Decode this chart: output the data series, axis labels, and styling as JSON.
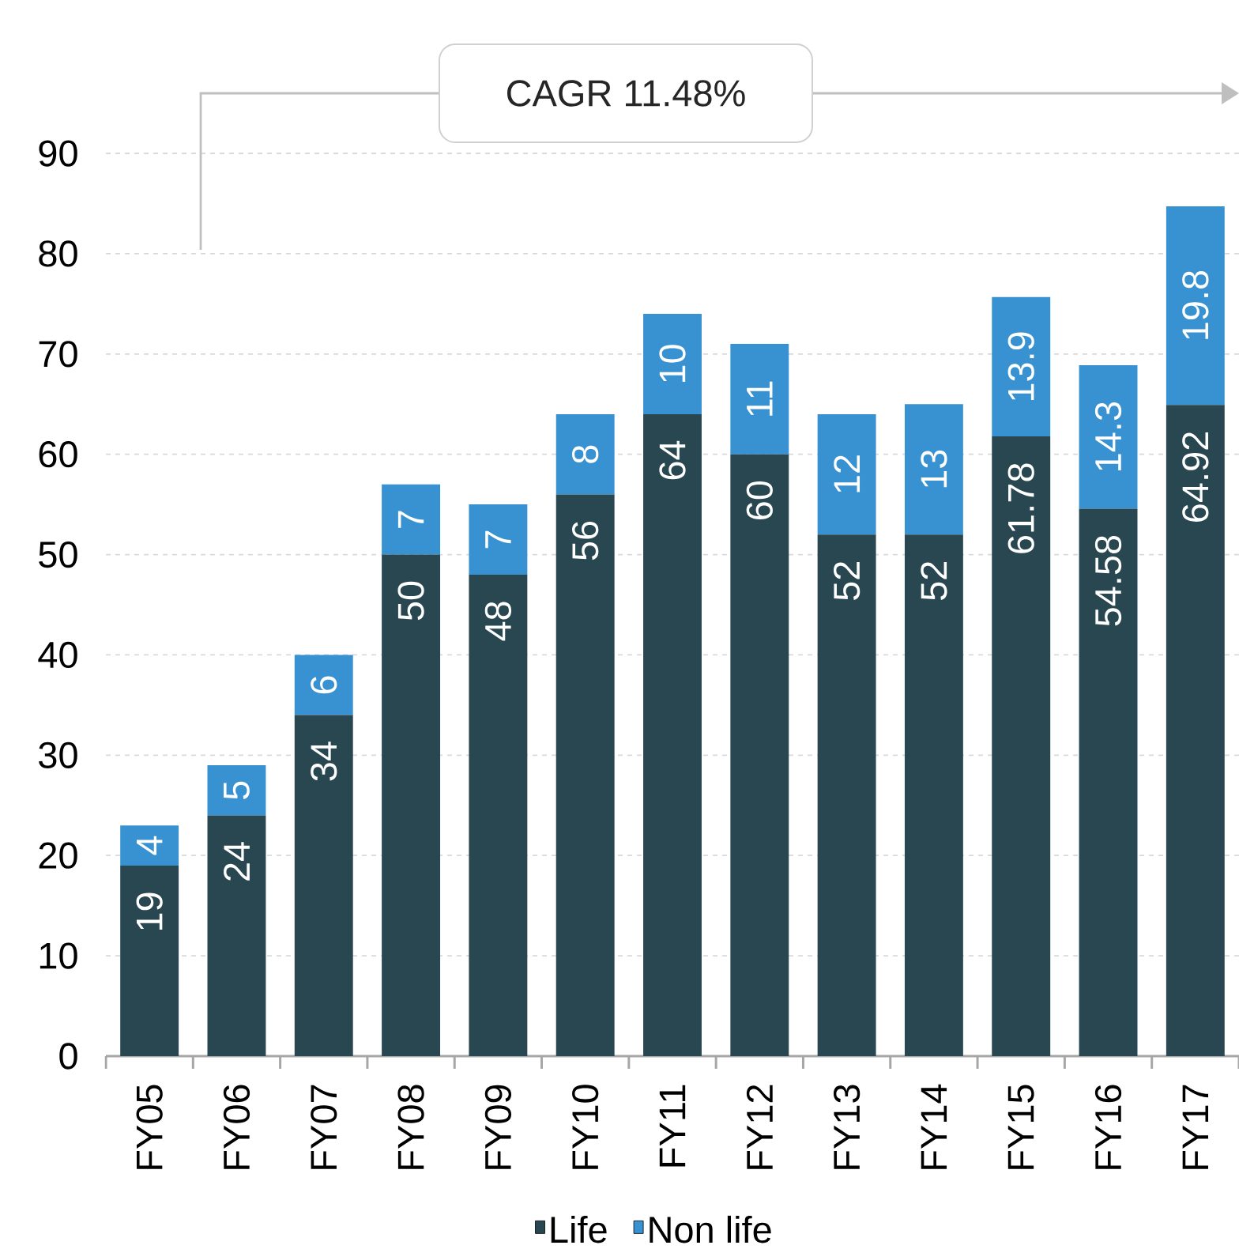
{
  "chart_data": {
    "type": "bar",
    "stacked": true,
    "categories": [
      "FY05",
      "FY06",
      "FY07",
      "FY08",
      "FY09",
      "FY10",
      "FY11",
      "FY12",
      "FY13",
      "FY14",
      "FY15",
      "FY16",
      "FY17"
    ],
    "series": [
      {
        "name": "Life",
        "color": "#294751",
        "values": [
          19,
          24,
          34,
          50,
          48,
          56,
          64,
          60,
          52,
          52,
          61.78,
          54.58,
          64.92
        ]
      },
      {
        "name": "Non life",
        "color": "#3892d1",
        "values": [
          4,
          5,
          6,
          7,
          7,
          8,
          10,
          11,
          12,
          13,
          13.9,
          14.3,
          19.8
        ]
      }
    ],
    "ylim": [
      0,
      90
    ],
    "yticks": [
      0,
      10,
      20,
      30,
      40,
      50,
      60,
      70,
      80,
      90
    ],
    "grid": "y",
    "legend": "bottom",
    "data_labels": true,
    "annotations": [
      "CAGR 11.48%"
    ]
  }
}
